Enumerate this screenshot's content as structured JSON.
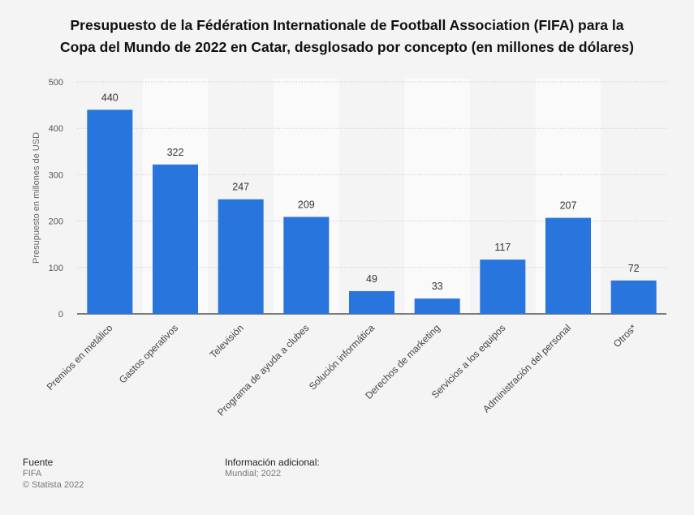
{
  "title": {
    "line1": "Presupuesto de la Fédération Internationale de Football Association (FIFA) para la",
    "line2": "Copa del Mundo de 2022 en Catar, desglosado por concepto (en millones de dólares)"
  },
  "chart_data": {
    "type": "bar",
    "categories": [
      "Premios en metálico",
      "Gastos operativos",
      "Televisión",
      "Programa de ayuda a clubes",
      "Solución informática",
      "Derechos de marketing",
      "Servicios a los equipos",
      "Administración del personal",
      "Otros*"
    ],
    "values": [
      440,
      322,
      247,
      209,
      49,
      33,
      117,
      207,
      72
    ],
    "ylabel": "Presupuesto en millones de USD",
    "xlabel": "",
    "ylim": [
      0,
      500
    ],
    "yticks": [
      0,
      100,
      200,
      300,
      400,
      500
    ],
    "grid": true,
    "bar_color": "#2876dd"
  },
  "footer": {
    "source_heading": "Fuente",
    "source_name": "FIFA",
    "copyright": "© Statista 2022",
    "info_heading": "Información adicional:",
    "info_text": "Mundial; 2022"
  }
}
